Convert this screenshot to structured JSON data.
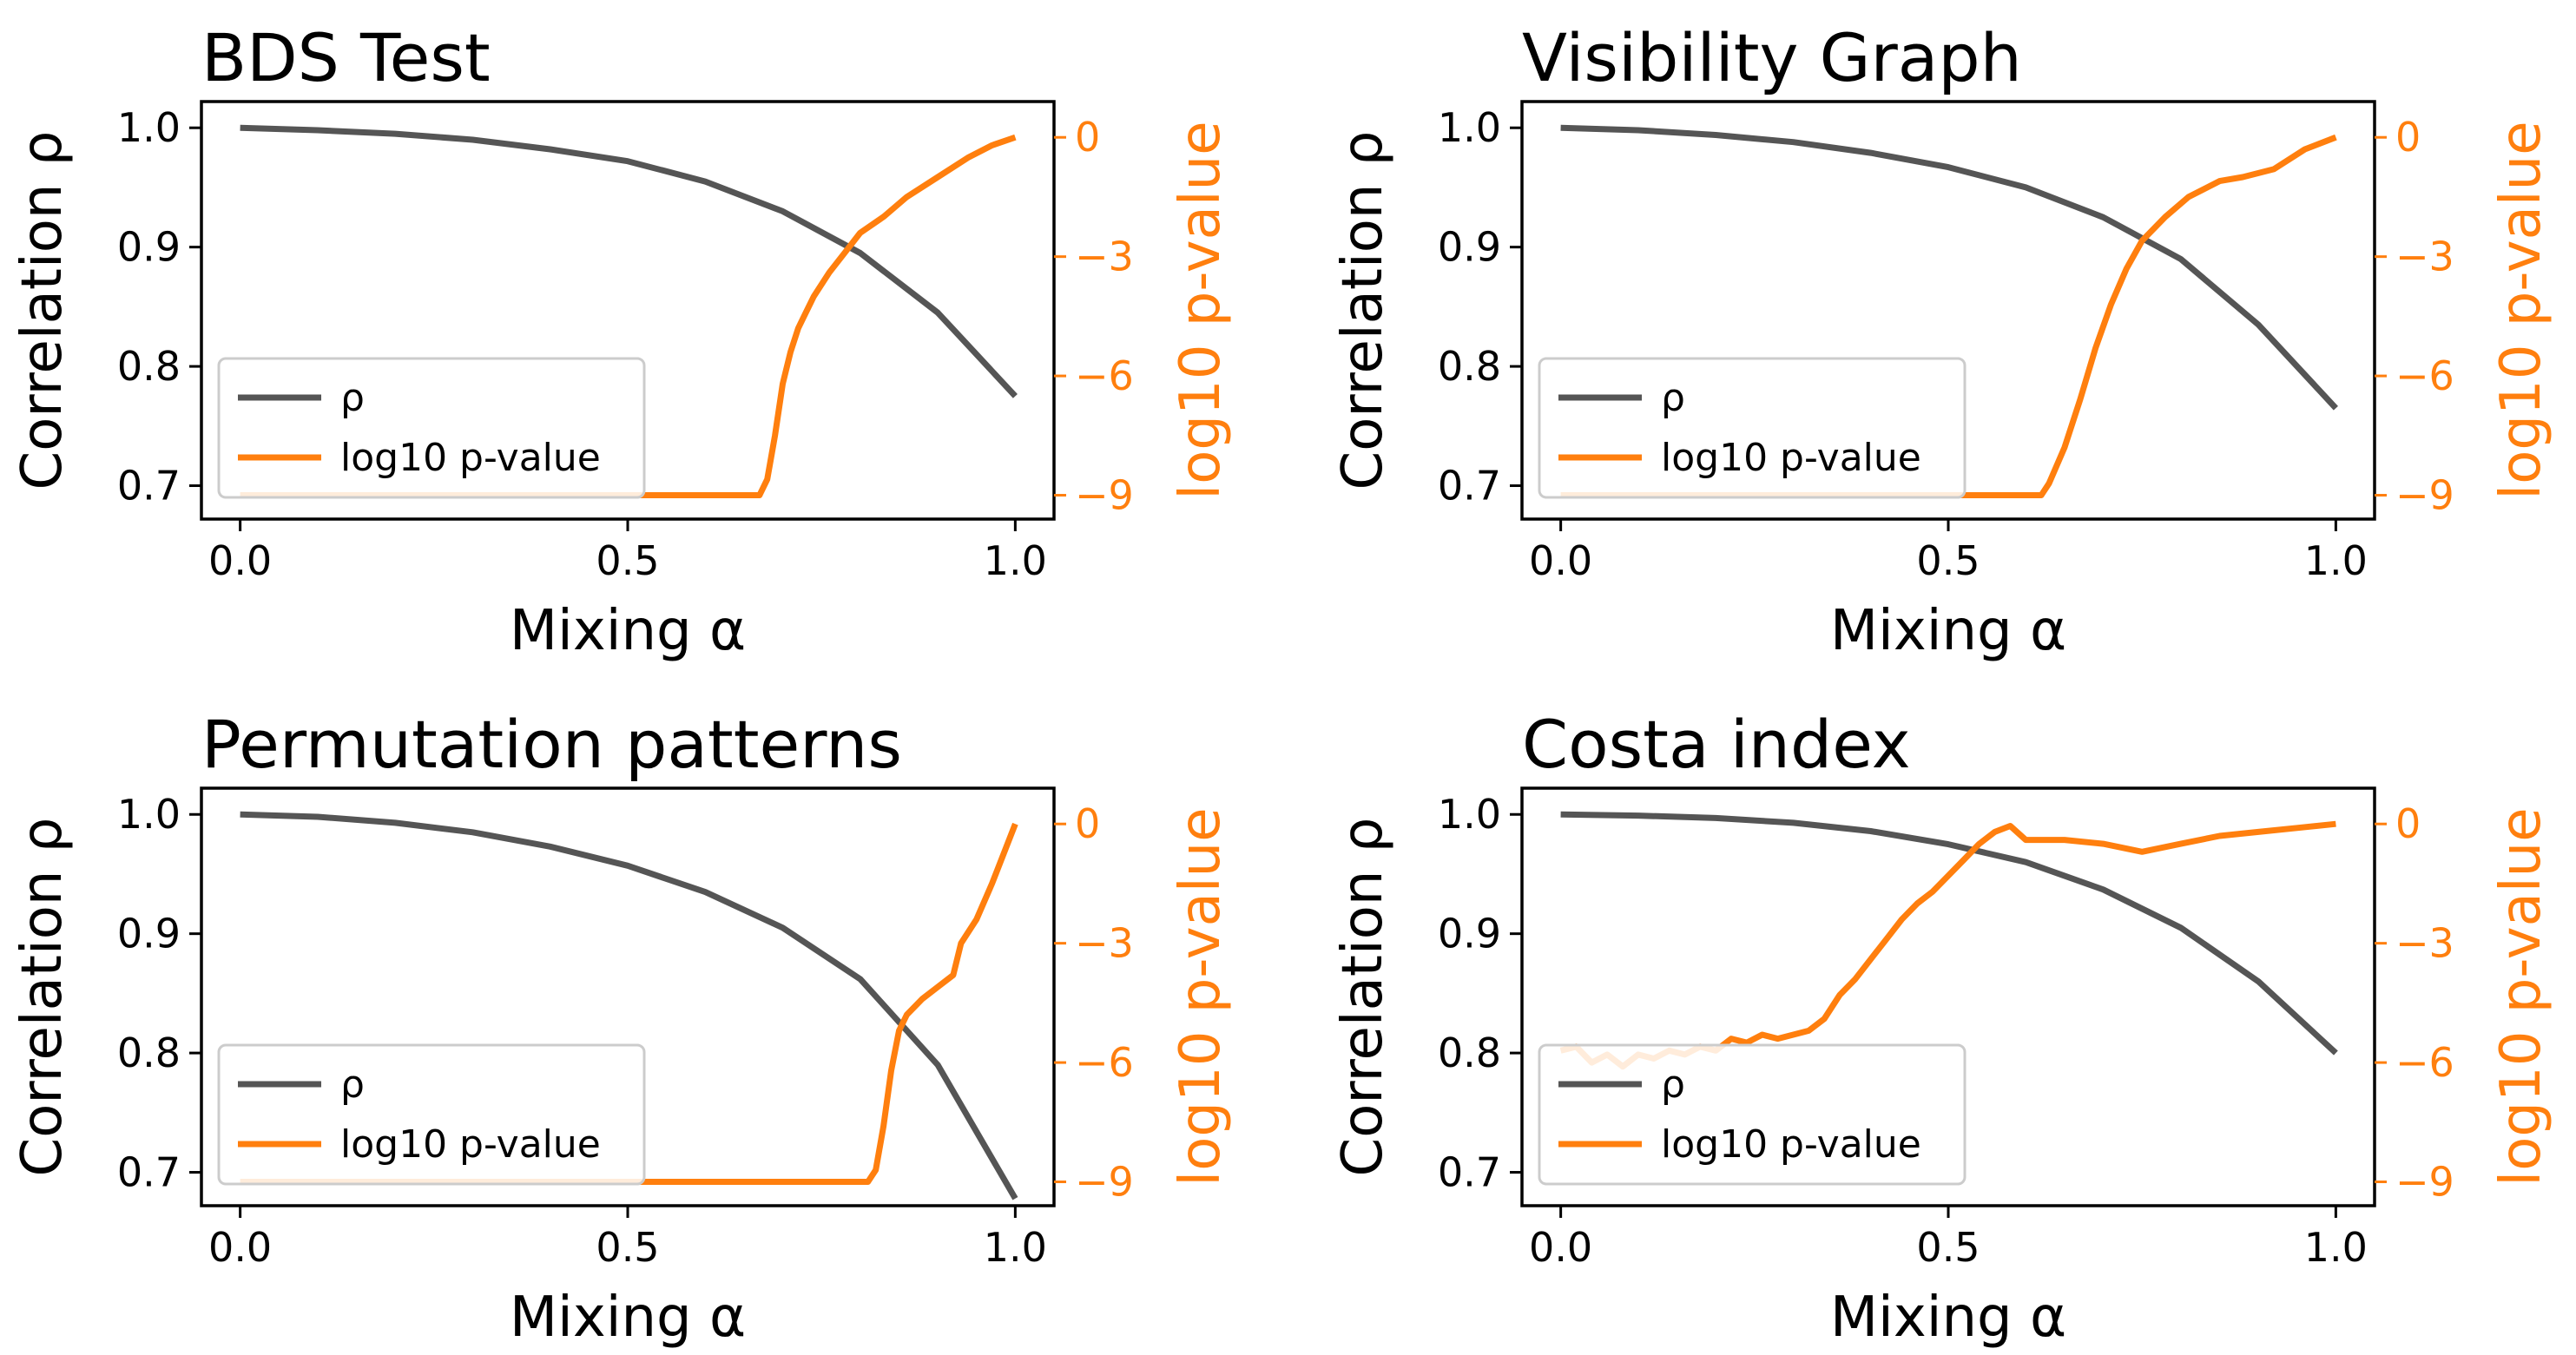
{
  "colors": {
    "rho": "#555555",
    "pval": "#ff7f0e",
    "axis": "#000000",
    "background": "#ffffff"
  },
  "chart_data": [
    {
      "type": "line",
      "title": "BDS Test",
      "xlabel": "Mixing α",
      "ylabel_left": "Correlation ρ",
      "ylabel_right": "log10 p-value",
      "xlim": [
        -0.05,
        1.05
      ],
      "ylim_left": [
        0.672,
        1.022
      ],
      "ylim_right": [
        -9.6,
        0.9
      ],
      "x_ticks": [
        "0.0",
        "0.5",
        "1.0"
      ],
      "y_ticks_left": [
        "0.7",
        "0.8",
        "0.9",
        "1.0"
      ],
      "y_ticks_right": [
        "−9",
        "−6",
        "−3",
        "0"
      ],
      "legend": {
        "location": "lower-left",
        "entries": [
          "ρ",
          "log10 p-value"
        ]
      },
      "series": [
        {
          "name": "ρ",
          "axis": "left",
          "x": [
            0,
            0.1,
            0.2,
            0.3,
            0.4,
            0.5,
            0.6,
            0.7,
            0.8,
            0.9,
            1.0
          ],
          "values": [
            1.0,
            0.998,
            0.995,
            0.99,
            0.982,
            0.972,
            0.955,
            0.93,
            0.895,
            0.845,
            0.775
          ]
        },
        {
          "name": "log10 p-value",
          "axis": "right",
          "x": [
            0,
            0.67,
            0.68,
            0.69,
            0.7,
            0.71,
            0.72,
            0.73,
            0.74,
            0.76,
            0.78,
            0.8,
            0.83,
            0.86,
            0.9,
            0.94,
            0.97,
            1.0
          ],
          "values": [
            -9,
            -9,
            -8.6,
            -7.5,
            -6.2,
            -5.4,
            -4.8,
            -4.4,
            -4.0,
            -3.4,
            -2.9,
            -2.4,
            -2.0,
            -1.5,
            -1.0,
            -0.5,
            -0.2,
            0
          ]
        }
      ]
    },
    {
      "type": "line",
      "title": "Visibility Graph",
      "xlabel": "Mixing α",
      "ylabel_left": "Correlation ρ",
      "ylabel_right": "log10 p-value",
      "xlim": [
        -0.05,
        1.05
      ],
      "ylim_left": [
        0.672,
        1.022
      ],
      "ylim_right": [
        -9.6,
        0.9
      ],
      "x_ticks": [
        "0.0",
        "0.5",
        "1.0"
      ],
      "y_ticks_left": [
        "0.7",
        "0.8",
        "0.9",
        "1.0"
      ],
      "y_ticks_right": [
        "−9",
        "−6",
        "−3",
        "0"
      ],
      "legend": {
        "location": "lower-left",
        "entries": [
          "ρ",
          "log10 p-value"
        ]
      },
      "series": [
        {
          "name": "ρ",
          "axis": "left",
          "x": [
            0,
            0.1,
            0.2,
            0.3,
            0.4,
            0.5,
            0.6,
            0.7,
            0.8,
            0.9,
            1.0
          ],
          "values": [
            1.0,
            0.998,
            0.994,
            0.988,
            0.979,
            0.967,
            0.95,
            0.925,
            0.89,
            0.835,
            0.765
          ]
        },
        {
          "name": "log10 p-value",
          "axis": "right",
          "x": [
            0,
            0.62,
            0.63,
            0.65,
            0.67,
            0.69,
            0.71,
            0.73,
            0.75,
            0.78,
            0.81,
            0.85,
            0.88,
            0.92,
            0.96,
            1.0
          ],
          "values": [
            -9,
            -9,
            -8.7,
            -7.8,
            -6.6,
            -5.3,
            -4.2,
            -3.3,
            -2.6,
            -2.0,
            -1.5,
            -1.1,
            -1.0,
            -0.8,
            -0.3,
            0
          ]
        }
      ]
    },
    {
      "type": "line",
      "title": "Permutation patterns",
      "xlabel": "Mixing α",
      "ylabel_left": "Correlation ρ",
      "ylabel_right": "log10 p-value",
      "xlim": [
        -0.05,
        1.05
      ],
      "ylim_left": [
        0.672,
        1.022
      ],
      "ylim_right": [
        -9.6,
        0.9
      ],
      "x_ticks": [
        "0.0",
        "0.5",
        "1.0"
      ],
      "y_ticks_left": [
        "0.7",
        "0.8",
        "0.9",
        "1.0"
      ],
      "y_ticks_right": [
        "−9",
        "−6",
        "−3",
        "0"
      ],
      "legend": {
        "location": "lower-left",
        "entries": [
          "ρ",
          "log10 p-value"
        ]
      },
      "series": [
        {
          "name": "ρ",
          "axis": "left",
          "x": [
            0,
            0.1,
            0.2,
            0.3,
            0.4,
            0.5,
            0.6,
            0.7,
            0.8,
            0.9,
            1.0
          ],
          "values": [
            1.0,
            0.998,
            0.993,
            0.985,
            0.973,
            0.957,
            0.935,
            0.905,
            0.862,
            0.79,
            0.678
          ]
        },
        {
          "name": "log10 p-value",
          "axis": "right",
          "x": [
            0,
            0.81,
            0.82,
            0.83,
            0.84,
            0.85,
            0.86,
            0.88,
            0.9,
            0.92,
            0.93,
            0.95,
            0.97,
            1.0
          ],
          "values": [
            -9,
            -9,
            -8.7,
            -7.6,
            -6.2,
            -5.2,
            -4.8,
            -4.4,
            -4.1,
            -3.8,
            -3.0,
            -2.4,
            -1.5,
            0
          ]
        }
      ]
    },
    {
      "type": "line",
      "title": "Costa index",
      "xlabel": "Mixing α",
      "ylabel_left": "Correlation ρ",
      "ylabel_right": "log10 p-value",
      "xlim": [
        -0.05,
        1.05
      ],
      "ylim_left": [
        0.672,
        1.022
      ],
      "ylim_right": [
        -9.6,
        0.9
      ],
      "x_ticks": [
        "0.0",
        "0.5",
        "1.0"
      ],
      "y_ticks_left": [
        "0.7",
        "0.8",
        "0.9",
        "1.0"
      ],
      "y_ticks_right": [
        "−9",
        "−6",
        "−3",
        "0"
      ],
      "legend": {
        "location": "lower-left",
        "entries": [
          "ρ",
          "log10 p-value"
        ]
      },
      "series": [
        {
          "name": "ρ",
          "axis": "left",
          "x": [
            0,
            0.1,
            0.2,
            0.3,
            0.4,
            0.5,
            0.6,
            0.7,
            0.8,
            0.9,
            1.0
          ],
          "values": [
            1.0,
            0.999,
            0.997,
            0.993,
            0.986,
            0.975,
            0.96,
            0.937,
            0.905,
            0.86,
            0.8
          ]
        },
        {
          "name": "log10 p-value",
          "axis": "right",
          "x": [
            0,
            0.02,
            0.04,
            0.06,
            0.08,
            0.1,
            0.12,
            0.14,
            0.16,
            0.18,
            0.2,
            0.22,
            0.24,
            0.26,
            0.28,
            0.3,
            0.32,
            0.34,
            0.36,
            0.38,
            0.4,
            0.42,
            0.44,
            0.46,
            0.48,
            0.5,
            0.52,
            0.54,
            0.56,
            0.58,
            0.6,
            0.65,
            0.7,
            0.75,
            0.8,
            0.85,
            0.9,
            0.95,
            1.0
          ],
          "values": [
            -5.7,
            -5.6,
            -6.0,
            -5.8,
            -6.1,
            -5.8,
            -5.9,
            -5.7,
            -5.8,
            -5.6,
            -5.7,
            -5.4,
            -5.5,
            -5.3,
            -5.4,
            -5.3,
            -5.2,
            -4.9,
            -4.3,
            -3.9,
            -3.4,
            -2.9,
            -2.4,
            -2.0,
            -1.7,
            -1.3,
            -0.9,
            -0.5,
            -0.2,
            -0.05,
            -0.4,
            -0.4,
            -0.5,
            -0.7,
            -0.5,
            -0.3,
            -0.2,
            -0.1,
            0
          ]
        }
      ]
    }
  ]
}
